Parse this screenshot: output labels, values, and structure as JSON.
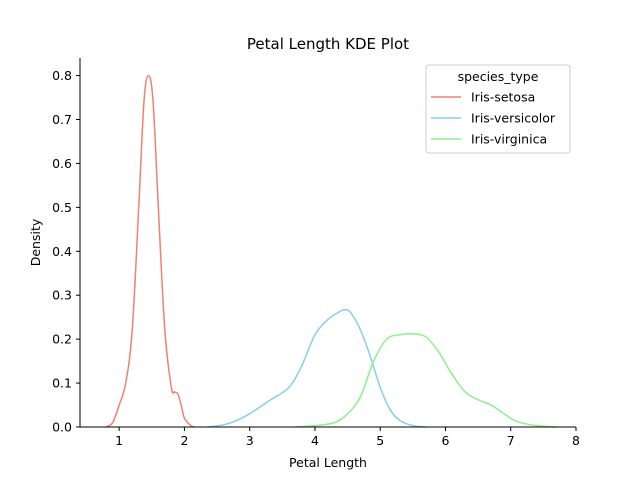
{
  "chart_data": {
    "type": "line",
    "title": "Petal Length KDE Plot",
    "xlabel": "Petal Length",
    "ylabel": "Density",
    "xlim": [
      0.4,
      8.0
    ],
    "ylim": [
      0.0,
      0.84
    ],
    "xticks": [
      1,
      2,
      3,
      4,
      5,
      6,
      7,
      8
    ],
    "yticks": [
      0.0,
      0.1,
      0.2,
      0.3,
      0.4,
      0.5,
      0.6,
      0.7,
      0.8
    ],
    "grid": false,
    "legend": {
      "title": "species_type",
      "placement": "top-right"
    },
    "series": [
      {
        "name": "Iris-setosa",
        "color": "#f08070",
        "points": [
          [
            0.8,
            0.0
          ],
          [
            0.9,
            0.01
          ],
          [
            1.0,
            0.05
          ],
          [
            1.1,
            0.1
          ],
          [
            1.2,
            0.22
          ],
          [
            1.3,
            0.5
          ],
          [
            1.38,
            0.74
          ],
          [
            1.45,
            0.8
          ],
          [
            1.52,
            0.74
          ],
          [
            1.6,
            0.5
          ],
          [
            1.7,
            0.22
          ],
          [
            1.8,
            0.09
          ],
          [
            1.85,
            0.08
          ],
          [
            1.9,
            0.075
          ],
          [
            1.95,
            0.05
          ],
          [
            2.0,
            0.02
          ],
          [
            2.1,
            0.003
          ],
          [
            2.15,
            0.0
          ]
        ]
      },
      {
        "name": "Iris-versicolor",
        "color": "#87ceeb",
        "points": [
          [
            2.35,
            0.0
          ],
          [
            2.6,
            0.005
          ],
          [
            2.8,
            0.015
          ],
          [
            3.0,
            0.03
          ],
          [
            3.3,
            0.06
          ],
          [
            3.6,
            0.09
          ],
          [
            3.8,
            0.14
          ],
          [
            4.0,
            0.21
          ],
          [
            4.2,
            0.245
          ],
          [
            4.35,
            0.26
          ],
          [
            4.45,
            0.267
          ],
          [
            4.55,
            0.26
          ],
          [
            4.7,
            0.22
          ],
          [
            4.85,
            0.16
          ],
          [
            5.0,
            0.09
          ],
          [
            5.15,
            0.04
          ],
          [
            5.3,
            0.015
          ],
          [
            5.5,
            0.003
          ],
          [
            5.7,
            0.0
          ]
        ]
      },
      {
        "name": "Iris-virginica",
        "color": "#90ee90",
        "points": [
          [
            3.7,
            0.0
          ],
          [
            4.0,
            0.003
          ],
          [
            4.3,
            0.01
          ],
          [
            4.5,
            0.03
          ],
          [
            4.7,
            0.07
          ],
          [
            4.9,
            0.15
          ],
          [
            5.1,
            0.2
          ],
          [
            5.3,
            0.21
          ],
          [
            5.5,
            0.212
          ],
          [
            5.7,
            0.205
          ],
          [
            5.9,
            0.17
          ],
          [
            6.1,
            0.12
          ],
          [
            6.3,
            0.08
          ],
          [
            6.5,
            0.062
          ],
          [
            6.7,
            0.05
          ],
          [
            6.9,
            0.03
          ],
          [
            7.1,
            0.012
          ],
          [
            7.4,
            0.003
          ],
          [
            7.7,
            0.0
          ]
        ]
      }
    ]
  }
}
